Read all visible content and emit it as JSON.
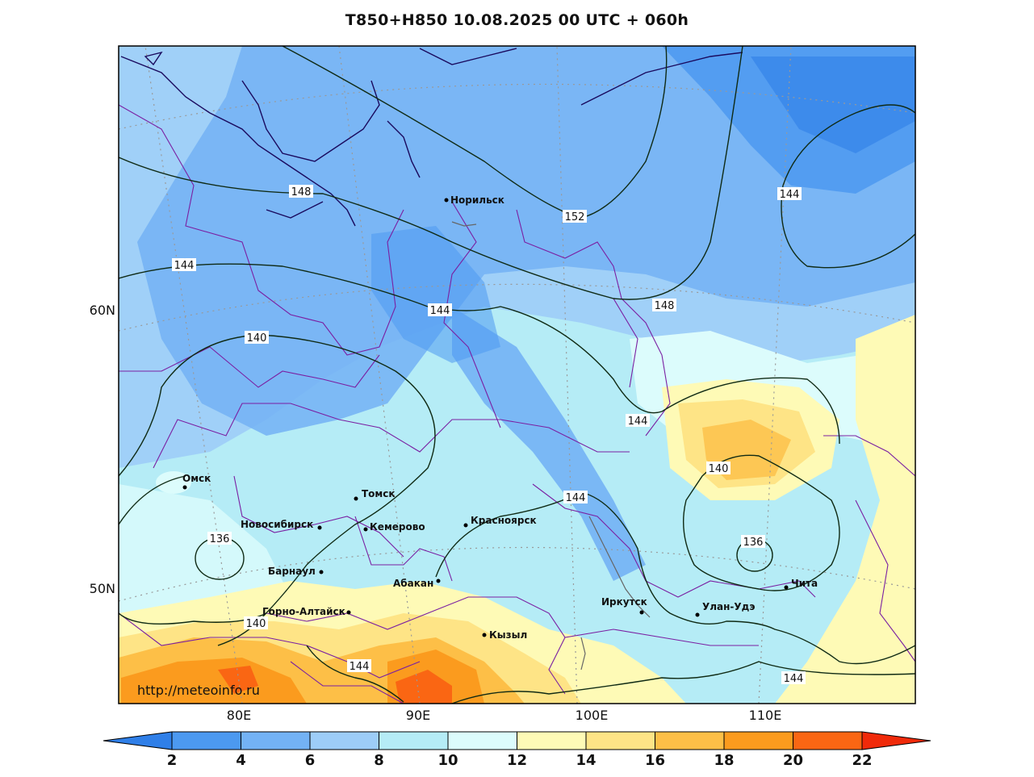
{
  "title": "T850+H850 10.08.2025 00 UTC + 060h",
  "source_url": "http://meteoinfo.ru",
  "lat_labels": [
    "60N",
    "50N"
  ],
  "lon_labels": [
    "80E",
    "90E",
    "100E",
    "110E"
  ],
  "cities": [
    {
      "name": "Норильск"
    },
    {
      "name": "Омск"
    },
    {
      "name": "Томск"
    },
    {
      "name": "Новосибирск"
    },
    {
      "name": "Кемерово"
    },
    {
      "name": "Красноярск"
    },
    {
      "name": "Барнаул"
    },
    {
      "name": "Абакан"
    },
    {
      "name": "Горно-Алтайск"
    },
    {
      "name": "Кызыл"
    },
    {
      "name": "Иркутск"
    },
    {
      "name": "Улан-Удэ"
    },
    {
      "name": "Чита"
    }
  ],
  "contour_labels": [
    "148",
    "152",
    "144",
    "144",
    "144",
    "148",
    "140",
    "144",
    "144",
    "140",
    "136",
    "136",
    "140",
    "144",
    "144"
  ],
  "colorbar": {
    "ticks": [
      "2",
      "4",
      "6",
      "8",
      "10",
      "12",
      "14",
      "16",
      "18",
      "20",
      "22"
    ],
    "colors": [
      "#2f7fe8",
      "#4c99f0",
      "#73b2f5",
      "#9dcdf8",
      "#b5ecf6",
      "#dcfcfc",
      "#fefab6",
      "#fee486",
      "#fdbf47",
      "#fb9b1e",
      "#fa6613",
      "#f02a0a"
    ]
  }
}
